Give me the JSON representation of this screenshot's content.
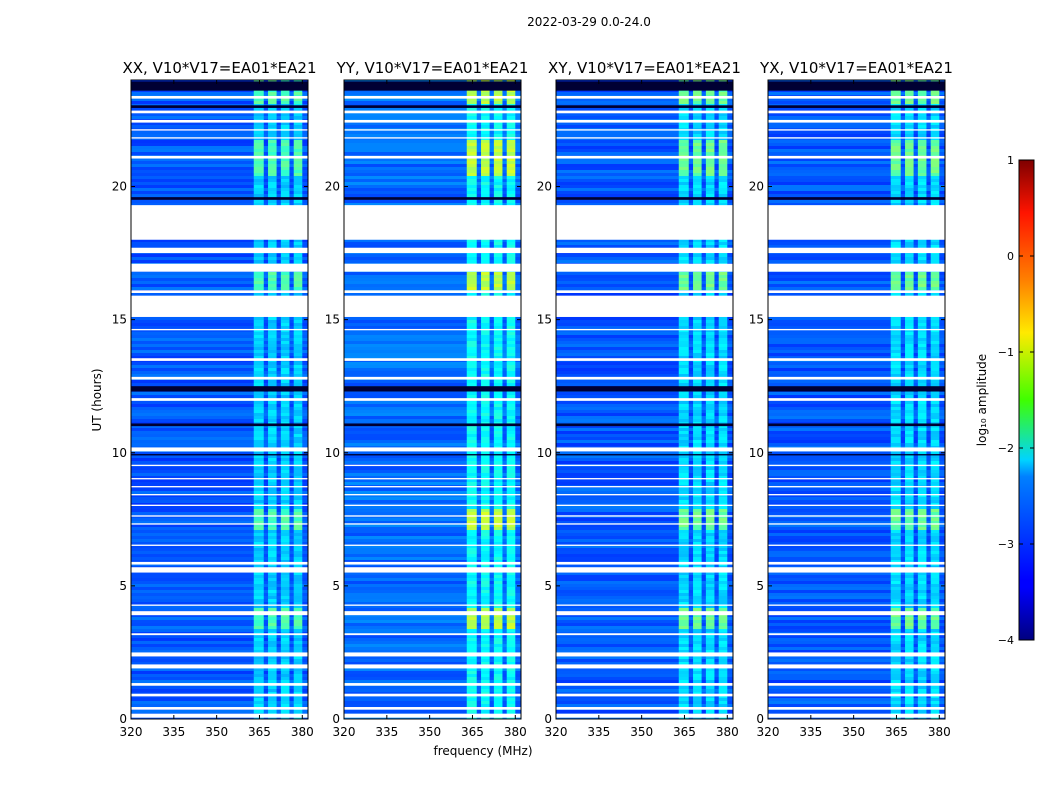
{
  "figure_title": "2022-03-29 0.0-24.0",
  "colors": {
    "background": "#ffffff",
    "axis": "#000000",
    "gap": "#ffffff",
    "dropout": "#000033",
    "base": "#1a3cf0"
  },
  "chart_data": {
    "type": "heatmap",
    "title": "2022-03-29 0.0-24.0",
    "xlabel": "frequency (MHz)",
    "ylabel": "UT (hours)",
    "xlim": [
      320,
      382
    ],
    "ylim": [
      0,
      24
    ],
    "xticks": [
      320,
      335,
      350,
      365,
      380
    ],
    "yticks": [
      0,
      5,
      10,
      15,
      20
    ],
    "panels": [
      {
        "title": "XX, V10*V17=EA01*EA21",
        "base_level": -2.95,
        "band_level": -2.35,
        "max_level": -1.75
      },
      {
        "title": "YY, V10*V17=EA01*EA21",
        "base_level": -2.85,
        "band_level": -2.1,
        "max_level": -1.2
      },
      {
        "title": "XY, V10*V17=EA01*EA21",
        "base_level": -2.95,
        "band_level": -2.3,
        "max_level": -1.6
      },
      {
        "title": "YX, V10*V17=EA01*EA21",
        "base_level": -2.95,
        "band_level": -2.3,
        "max_level": -1.6
      }
    ],
    "rfi_band_mhz": [
      363,
      380
    ],
    "rfi_channels_mhz": [
      [
        363,
        366.5
      ],
      [
        368,
        371
      ],
      [
        372.5,
        375.5
      ],
      [
        377,
        380
      ]
    ],
    "strong_rfi_hours": [
      [
        3.4,
        4.2
      ],
      [
        7.1,
        7.9
      ],
      [
        20.5,
        21.8
      ],
      [
        23.2,
        24.0
      ],
      [
        16.2,
        16.8
      ]
    ],
    "gaps_hours": [
      [
        18.0,
        19.3
      ],
      [
        15.1,
        15.9
      ],
      [
        16.0,
        16.1
      ],
      [
        16.8,
        17.1
      ],
      [
        17.5,
        17.7
      ],
      [
        0.05,
        0.2
      ],
      [
        0.35,
        0.45
      ],
      [
        0.85,
        0.95
      ],
      [
        1.25,
        1.35
      ],
      [
        1.9,
        2.05
      ],
      [
        2.35,
        2.5
      ],
      [
        3.15,
        3.22
      ],
      [
        3.9,
        4.05
      ],
      [
        4.25,
        4.3
      ],
      [
        5.5,
        5.7
      ],
      [
        5.8,
        5.9
      ],
      [
        6.5,
        6.55
      ],
      [
        7.3,
        7.35
      ],
      [
        7.6,
        7.65
      ],
      [
        8.0,
        8.05
      ],
      [
        8.4,
        8.45
      ],
      [
        8.7,
        8.75
      ],
      [
        9.0,
        9.05
      ],
      [
        9.5,
        9.55
      ],
      [
        10.05,
        10.2
      ],
      [
        11.95,
        12.05
      ],
      [
        12.75,
        12.85
      ],
      [
        13.45,
        13.55
      ],
      [
        14.6,
        14.65
      ],
      [
        21.05,
        21.15
      ],
      [
        21.8,
        21.85
      ],
      [
        22.1,
        22.15
      ],
      [
        22.4,
        22.5
      ],
      [
        22.75,
        22.85
      ],
      [
        23.3,
        23.4
      ]
    ],
    "dropout_hours": [
      [
        23.6,
        23.95
      ],
      [
        22.95,
        23.05
      ],
      [
        19.5,
        19.6
      ],
      [
        12.3,
        12.5
      ],
      [
        11.0,
        11.1
      ],
      [
        9.9,
        9.95
      ]
    ],
    "colorbar": {
      "label": "log₁₀ amplitude",
      "min": -4,
      "max": 1,
      "ticks": [
        1,
        0,
        -1,
        -2,
        -3,
        -4
      ],
      "tick_labels": [
        "1",
        "0",
        "−1",
        "−2",
        "−3",
        "−4"
      ],
      "colormap": "jet"
    }
  }
}
